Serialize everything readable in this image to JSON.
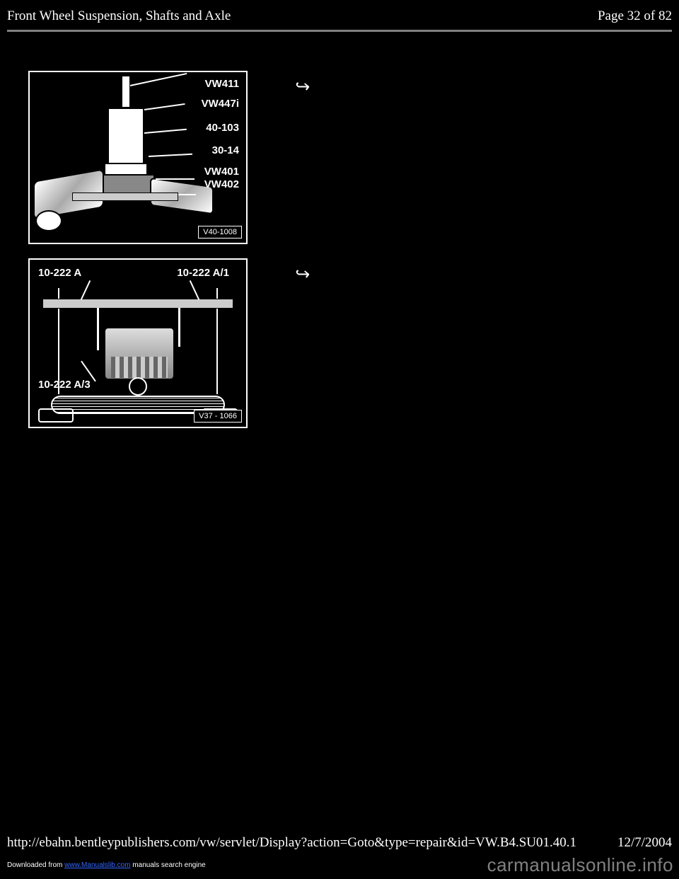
{
  "header": {
    "title": "Front Wheel Suspension, Shafts and Axle",
    "page_info": "Page 32 of 82"
  },
  "figure1": {
    "labels": {
      "l1": "VW411",
      "l2": "VW447i",
      "l3": "40-103",
      "l4": "30-14",
      "l5": "VW401",
      "l6": "VW402"
    },
    "caption_id": "V40-1008"
  },
  "figure2": {
    "labels": {
      "l1": "10-222 A",
      "l2": "10-222 A/1",
      "l3": "10-222 A/3"
    },
    "caption_id": "V37 - 1066"
  },
  "footer": {
    "url": "http://ebahn.bentleypublishers.com/vw/servlet/Display?action=Goto&type=repair&id=VW.B4.SU01.40.1",
    "date": "12/7/2004"
  },
  "download": {
    "prefix": "Downloaded from ",
    "link_text": "www.Manualslib.com",
    "suffix": " manuals search engine"
  },
  "watermark": "carmanualsonline.info",
  "colors": {
    "background": "#000000",
    "text": "#ffffff",
    "rule": "#808080",
    "link": "#3366ff"
  }
}
